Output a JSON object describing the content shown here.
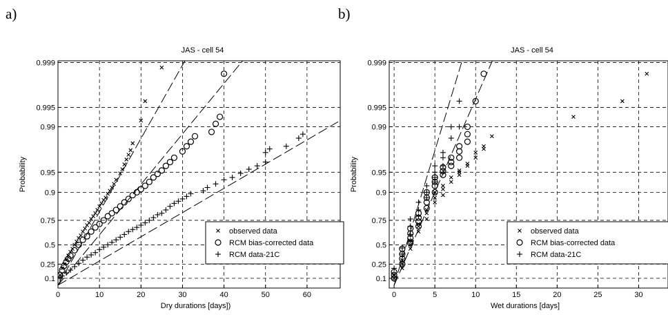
{
  "panels": {
    "a": "a)",
    "b": "b)"
  },
  "chart_data": [
    {
      "type": "scatter",
      "panel_label": "a)",
      "title": "JAS - cell 54",
      "xlabel": "Dry durations [days])",
      "ylabel": "Probability",
      "xlim": [
        0,
        68
      ],
      "xticks": [
        0,
        10,
        20,
        30,
        40,
        50,
        60
      ],
      "yscale": "probability (Gumbel/exponential paper)",
      "yticks": [
        0.1,
        0.25,
        0.5,
        0.75,
        0.9,
        0.95,
        0.99,
        0.995,
        0.999
      ],
      "ytick_labels": [
        "0.1",
        "0.25",
        "0.5",
        "0.75",
        "0.9",
        "0.95",
        "0.99",
        "0.995",
        "0.999"
      ],
      "grid": true,
      "legend": "center-right",
      "legend_entries": [
        {
          "marker": "x",
          "label": "observed data"
        },
        {
          "marker": "o",
          "label": "RCM bias-corrected data"
        },
        {
          "marker": "+",
          "label": "RCM data-21C"
        }
      ],
      "series": [
        {
          "name": "observed data",
          "marker": "x",
          "x": [
            0.5,
            1,
            1.5,
            2,
            2.5,
            3,
            3.5,
            4,
            4.5,
            5,
            5.5,
            6,
            6.5,
            7,
            7.5,
            8,
            8.5,
            9,
            9.5,
            10,
            10.5,
            11,
            11.5,
            12,
            12.5,
            13,
            13.5,
            14,
            15,
            15.5,
            16,
            16.5,
            17,
            17.5,
            18,
            20,
            21,
            25
          ],
          "y": [
            0.13,
            0.2,
            0.25,
            0.31,
            0.36,
            0.41,
            0.45,
            0.5,
            0.54,
            0.58,
            0.61,
            0.65,
            0.68,
            0.71,
            0.73,
            0.76,
            0.78,
            0.8,
            0.82,
            0.84,
            0.855,
            0.87,
            0.88,
            0.895,
            0.905,
            0.915,
            0.925,
            0.935,
            0.948,
            0.955,
            0.962,
            0.968,
            0.973,
            0.977,
            0.982,
            0.992,
            0.996,
            0.9988
          ],
          "fit": [
            [
              0,
              0.0
            ],
            [
              33,
              0.9995
            ]
          ]
        },
        {
          "name": "RCM bias-corrected data",
          "marker": "o",
          "x": [
            0.5,
            1,
            1.5,
            2,
            2.5,
            3,
            4,
            5,
            6,
            7,
            8,
            9,
            10,
            11,
            12,
            13,
            14,
            15,
            16,
            17,
            18,
            19,
            20,
            21,
            22,
            23,
            24,
            25,
            26,
            27,
            28,
            30,
            31,
            32,
            33,
            37,
            38,
            39,
            40
          ],
          "y": [
            0.13,
            0.18,
            0.23,
            0.28,
            0.32,
            0.36,
            0.43,
            0.5,
            0.56,
            0.6,
            0.65,
            0.69,
            0.72,
            0.75,
            0.78,
            0.8,
            0.82,
            0.84,
            0.86,
            0.875,
            0.89,
            0.9,
            0.91,
            0.92,
            0.93,
            0.94,
            0.947,
            0.953,
            0.96,
            0.965,
            0.97,
            0.976,
            0.98,
            0.983,
            0.986,
            0.988,
            0.991,
            0.993,
            0.9985
          ],
          "fit": [
            [
              0,
              0.0
            ],
            [
              48,
              0.9995
            ]
          ]
        },
        {
          "name": "RCM data-21C",
          "marker": "+",
          "x": [
            0.5,
            1,
            2,
            3,
            4,
            5,
            6,
            7,
            8,
            9,
            10,
            11,
            12,
            13,
            14,
            15,
            16,
            17,
            18,
            19,
            20,
            21,
            22,
            23,
            24,
            25,
            26,
            27,
            28,
            29,
            30,
            31,
            32,
            35,
            36,
            38,
            40,
            42,
            44,
            46,
            48,
            50,
            50,
            51,
            55,
            58,
            59
          ],
          "y": [
            0.1,
            0.12,
            0.15,
            0.18,
            0.22,
            0.26,
            0.3,
            0.34,
            0.37,
            0.4,
            0.44,
            0.47,
            0.5,
            0.53,
            0.56,
            0.59,
            0.62,
            0.65,
            0.67,
            0.69,
            0.71,
            0.73,
            0.75,
            0.77,
            0.79,
            0.8,
            0.82,
            0.84,
            0.855,
            0.865,
            0.875,
            0.885,
            0.895,
            0.905,
            0.915,
            0.925,
            0.935,
            0.94,
            0.948,
            0.955,
            0.96,
            0.965,
            0.975,
            0.978,
            0.98,
            0.985,
            0.987
          ],
          "fit": [
            [
              0,
              0.0
            ],
            [
              68,
              0.992
            ]
          ]
        }
      ]
    },
    {
      "type": "scatter",
      "panel_label": "b)",
      "title": "JAS - cell 54",
      "xlabel": "Wet durations [days]",
      "ylabel": "Probability",
      "xlim": [
        -0.6,
        33.6
      ],
      "xticks": [
        0,
        5,
        10,
        15,
        20,
        25,
        30
      ],
      "yscale": "probability (Gumbel/exponential paper)",
      "yticks": [
        0.1,
        0.25,
        0.5,
        0.75,
        0.9,
        0.95,
        0.99,
        0.995,
        0.999
      ],
      "ytick_labels": [
        "0.1",
        "0.25",
        "0.5",
        "0.75",
        "0.9",
        "0.95",
        "0.99",
        "0.995",
        "0.999"
      ],
      "grid": true,
      "legend": "center-right",
      "legend_entries": [
        {
          "marker": "x",
          "label": "observed data"
        },
        {
          "marker": "o",
          "label": "RCM bias-corrected data"
        },
        {
          "marker": "+",
          "label": "RCM data-21C"
        }
      ],
      "series": [
        {
          "name": "observed data",
          "marker": "x",
          "x": [
            0,
            0,
            1,
            1,
            1,
            2,
            2,
            2,
            3,
            3,
            3,
            4,
            4,
            4,
            5,
            5,
            5,
            6,
            6,
            6,
            7,
            7,
            8,
            8,
            8,
            9,
            9,
            10,
            10,
            11,
            11,
            12,
            22,
            28,
            31
          ],
          "y": [
            0.1,
            0.13,
            0.2,
            0.25,
            0.3,
            0.45,
            0.5,
            0.55,
            0.65,
            0.7,
            0.72,
            0.76,
            0.8,
            0.82,
            0.86,
            0.88,
            0.9,
            0.89,
            0.91,
            0.92,
            0.93,
            0.94,
            0.945,
            0.95,
            0.953,
            0.96,
            0.963,
            0.97,
            0.975,
            0.978,
            0.98,
            0.986,
            0.993,
            0.996,
            0.9985
          ],
          "fit": []
        },
        {
          "name": "RCM bias-corrected data",
          "marker": "o",
          "x": [
            0,
            0,
            0,
            1,
            1,
            1,
            1,
            2,
            2,
            2,
            2,
            3,
            3,
            3,
            3,
            4,
            4,
            4,
            4,
            5,
            5,
            5,
            5,
            6,
            6,
            6,
            7,
            7,
            7,
            8,
            8,
            8,
            9,
            9,
            9,
            10,
            11
          ],
          "y": [
            0.1,
            0.13,
            0.16,
            0.25,
            0.32,
            0.38,
            0.45,
            0.52,
            0.58,
            0.63,
            0.68,
            0.7,
            0.74,
            0.77,
            0.8,
            0.83,
            0.86,
            0.88,
            0.9,
            0.9,
            0.92,
            0.93,
            0.94,
            0.945,
            0.952,
            0.958,
            0.96,
            0.965,
            0.97,
            0.97,
            0.976,
            0.98,
            0.983,
            0.987,
            0.99,
            0.996,
            0.9985
          ],
          "fit": [
            [
              0,
              0.0
            ],
            [
              13,
              0.9995
            ]
          ]
        },
        {
          "name": "RCM data-21C",
          "marker": "+",
          "x": [
            0,
            0,
            1,
            1,
            1,
            2,
            2,
            2,
            2,
            3,
            3,
            3,
            4,
            4,
            4,
            5,
            5,
            5,
            5,
            6,
            6,
            6,
            6,
            7,
            7,
            8,
            8
          ],
          "y": [
            0.12,
            0.2,
            0.28,
            0.38,
            0.46,
            0.55,
            0.62,
            0.7,
            0.76,
            0.78,
            0.82,
            0.86,
            0.88,
            0.9,
            0.92,
            0.93,
            0.94,
            0.95,
            0.96,
            0.95,
            0.96,
            0.97,
            0.975,
            0.985,
            0.99,
            0.99,
            0.996
          ],
          "fit": [
            [
              0,
              0.0
            ],
            [
              9,
              0.9995
            ]
          ]
        }
      ]
    }
  ]
}
